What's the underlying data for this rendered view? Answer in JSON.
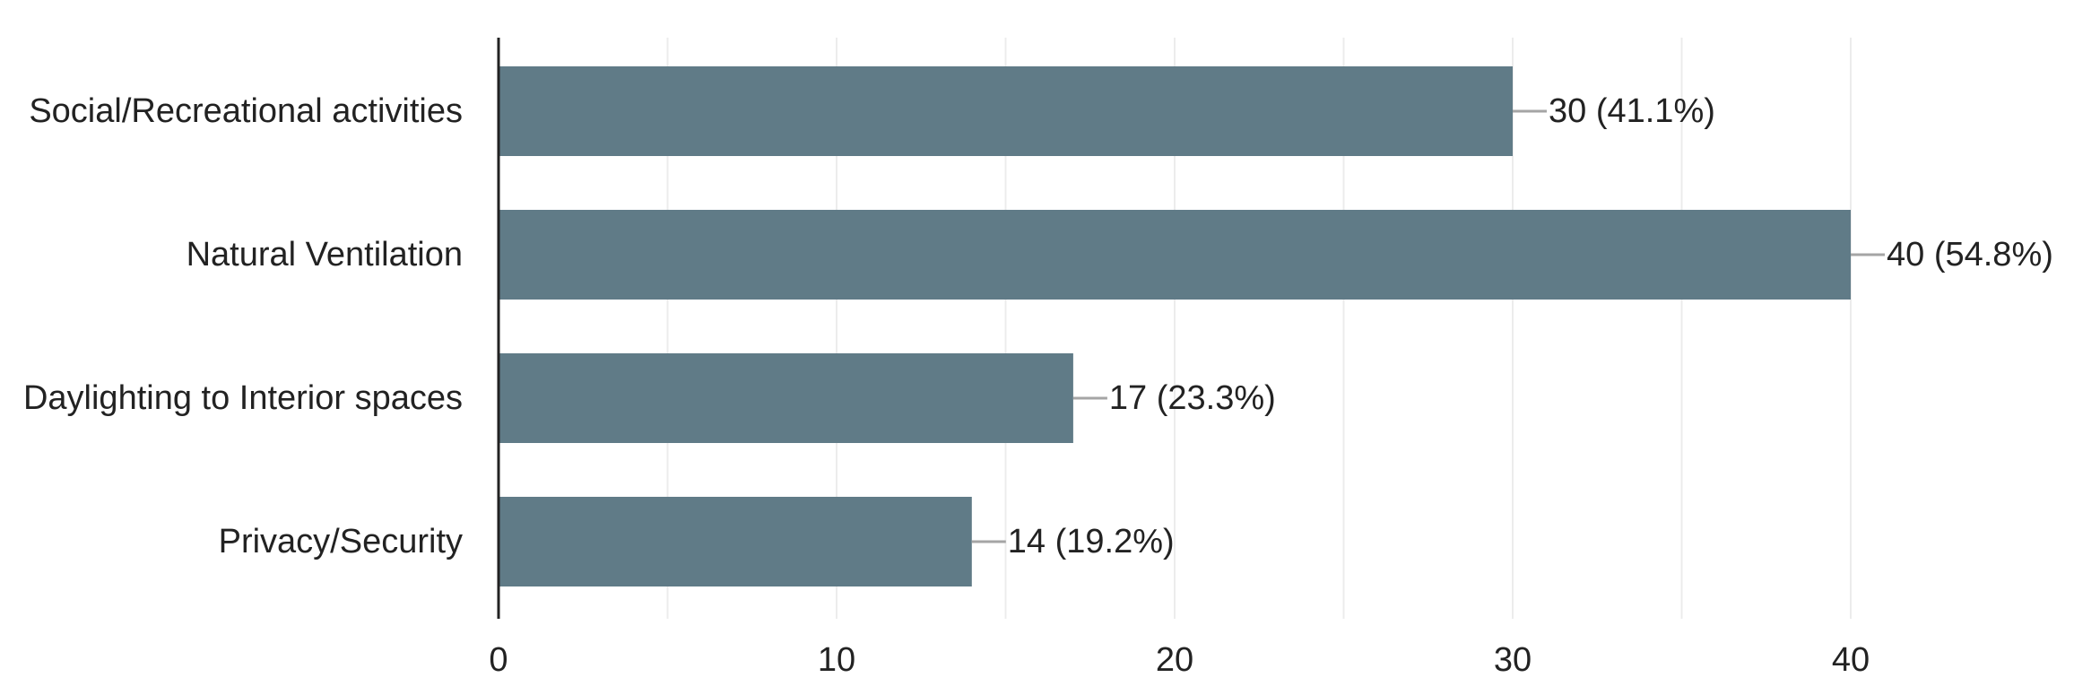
{
  "chart_data": {
    "type": "bar",
    "orientation": "horizontal",
    "categories": [
      "Social/Recreational activities",
      "Natural Ventilation",
      "Daylighting to Interior spaces",
      "Privacy/Security"
    ],
    "values": [
      30,
      40,
      17,
      14
    ],
    "data_labels": [
      "30 (41.1%)",
      "40 (54.8%)",
      "17 (23.3%)",
      "14 (19.2%)"
    ],
    "xlim": [
      0,
      40
    ],
    "x_ticks": [
      0,
      10,
      20,
      30,
      40
    ],
    "x_tick_labels": [
      "0",
      "10",
      "20",
      "30",
      "40"
    ],
    "grid": true,
    "bar_color": "#607b87",
    "title": "",
    "xlabel": "",
    "ylabel": ""
  }
}
